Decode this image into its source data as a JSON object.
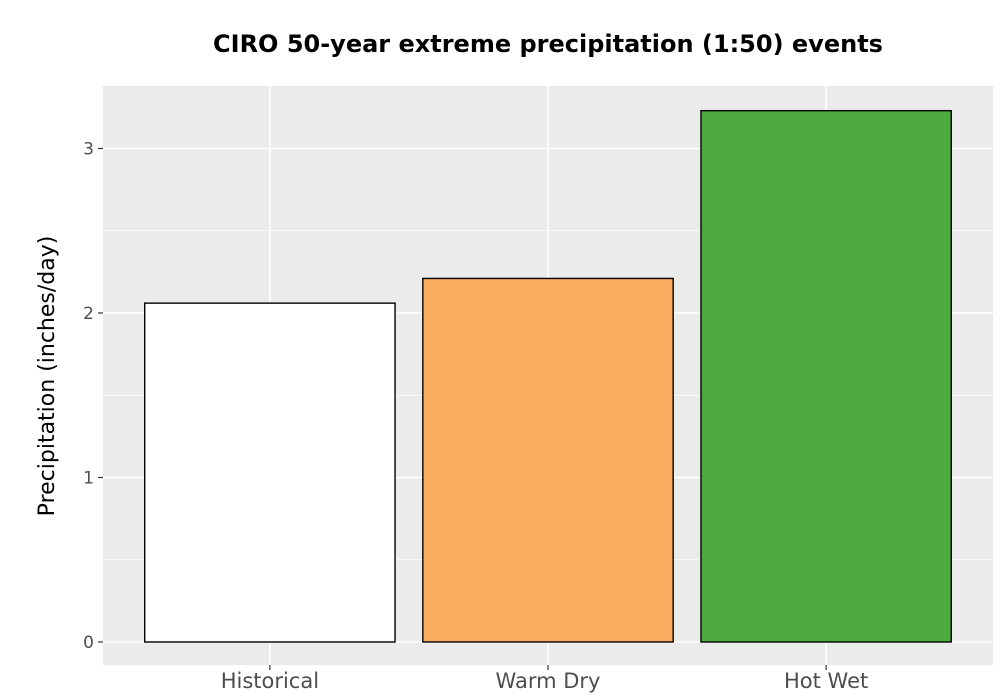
{
  "chart_data": {
    "type": "bar",
    "title": "CIRO 50-year extreme precipitation (1:50) events",
    "xlabel": "",
    "ylabel": "Precipitation (inches/day)",
    "categories": [
      "Historical",
      "Warm Dry",
      "Hot Wet"
    ],
    "values": [
      2.06,
      2.21,
      3.23
    ],
    "colors": [
      "#ffffff",
      "#fcae60",
      "#4daa3f"
    ],
    "ylim": [
      -0.14,
      3.38
    ],
    "yticks": [
      0,
      1,
      2,
      3
    ],
    "grid": true,
    "panel_background": "#ebebeb",
    "bar_outline": "#000000"
  }
}
